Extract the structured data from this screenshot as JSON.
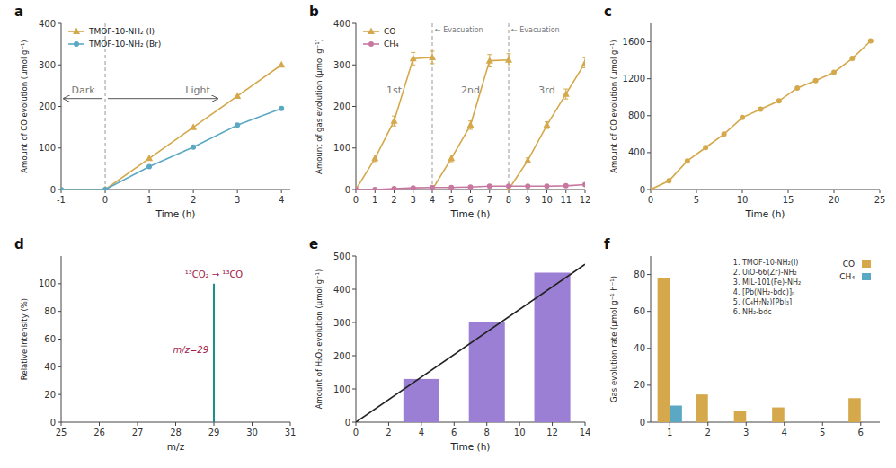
{
  "chart_data": [
    {
      "type": "line",
      "title": "a",
      "x_label": "Time (h)",
      "y_label": "Amount of CO evolution (μmol g⁻¹)",
      "xlim": [
        -1,
        4.2
      ],
      "xticks": [
        -1,
        0,
        1,
        2,
        3,
        4
      ],
      "ylim": [
        0,
        400
      ],
      "yticks": [
        0,
        100,
        200,
        300,
        400
      ],
      "legend": "upper left",
      "vlines": [
        0
      ],
      "annotations": [
        "Dark",
        "Light"
      ],
      "series": [
        {
          "name": "TMOF-10-NH₂ (I)",
          "color": "#D4A84B",
          "marker": "triangle",
          "x": [
            -1,
            0,
            1,
            2,
            3,
            4
          ],
          "values": [
            0,
            0,
            75,
            150,
            225,
            300
          ]
        },
        {
          "name": "TMOF-10-NH₂ (Br)",
          "color": "#5BA8C4",
          "marker": "circle",
          "x": [
            -1,
            0,
            1,
            2,
            3,
            4
          ],
          "values": [
            0,
            0,
            55,
            102,
            155,
            195
          ]
        }
      ]
    },
    {
      "type": "line",
      "title": "b",
      "x_label": "Time (h)",
      "y_label": "Amount of gas evolution (μmol g⁻¹)",
      "xlim": [
        0,
        12
      ],
      "xticks": [
        0,
        1,
        2,
        3,
        4,
        5,
        6,
        7,
        8,
        9,
        10,
        11,
        12
      ],
      "ylim": [
        0,
        400
      ],
      "yticks": [
        0,
        100,
        200,
        300,
        400
      ],
      "legend": "upper left",
      "vlines": [
        {
          "value": 4,
          "label": "← Evacuation"
        },
        {
          "value": 8,
          "label": "← Evacuation"
        }
      ],
      "annotations": [
        "1st",
        "2nd",
        "3rd"
      ],
      "series": [
        {
          "name": "CO",
          "color": "#D4A84B",
          "marker": "triangle",
          "x": [
            0,
            1,
            2,
            3,
            4,
            null,
            4,
            5,
            6,
            7,
            8,
            null,
            8,
            9,
            10,
            11,
            12
          ],
          "values": [
            0,
            75,
            165,
            315,
            318,
            null,
            0,
            75,
            155,
            310,
            312,
            null,
            0,
            70,
            155,
            230,
            305
          ],
          "errors": [
            0,
            8,
            12,
            15,
            15,
            null,
            0,
            8,
            10,
            15,
            15,
            null,
            0,
            6,
            8,
            12,
            12
          ]
        },
        {
          "name": "CH₄",
          "color": "#C878A0",
          "marker": "circle",
          "x": [
            0,
            1,
            2,
            3,
            4,
            5,
            6,
            7,
            8,
            9,
            10,
            11,
            12
          ],
          "values": [
            0,
            0,
            2,
            4,
            5,
            5,
            6,
            8,
            8,
            8,
            8,
            9,
            12
          ],
          "errors": [
            0,
            0,
            1,
            1,
            1,
            1,
            1,
            1,
            1,
            1,
            1,
            1,
            1
          ]
        }
      ]
    },
    {
      "type": "line",
      "title": "c",
      "x_label": "Time (h)",
      "y_label": "Amount of CO evolution (μmol g⁻¹)",
      "xlim": [
        0,
        25
      ],
      "xticks": [
        0,
        5,
        10,
        15,
        20,
        25
      ],
      "ylim": [
        0,
        1800
      ],
      "yticks": [
        0,
        400,
        800,
        1200,
        1600
      ],
      "series": [
        {
          "color": "#D4A84B",
          "marker": "circle",
          "x": [
            0,
            2,
            4,
            6,
            8,
            10,
            12,
            14,
            16,
            18,
            20,
            22,
            24
          ],
          "values": [
            0,
            95,
            310,
            455,
            600,
            780,
            870,
            960,
            1100,
            1180,
            1270,
            1420,
            1610
          ]
        }
      ]
    },
    {
      "type": "stem",
      "title": "d",
      "x_label": "m/z",
      "y_label": "Relative intensity (%)",
      "xlim": [
        25,
        31
      ],
      "xticks": [
        25,
        26,
        27,
        28,
        29,
        30,
        31
      ],
      "ylim": [
        0,
        120
      ],
      "yticks": [
        0,
        20,
        40,
        60,
        80,
        100
      ],
      "annotations": [
        "¹³CO₂ → ¹³CO",
        "m/z=29"
      ],
      "series": [
        {
          "color": "#1A9090",
          "x": [
            29
          ],
          "values": [
            100
          ]
        }
      ]
    },
    {
      "type": "bar",
      "title": "e",
      "x_label": "Time (h)",
      "y_label": "Amount of H₂O₂ evolution (μmol g⁻¹)",
      "xlim": [
        0,
        14
      ],
      "xticks": [
        0,
        2,
        4,
        6,
        8,
        10,
        12,
        14
      ],
      "ylim": [
        0,
        500
      ],
      "yticks": [
        0,
        100,
        200,
        300,
        400,
        500
      ],
      "series": [
        {
          "type": "bar",
          "color": "#9B7FD4",
          "x": [
            4,
            8,
            12
          ],
          "values": [
            130,
            300,
            450
          ]
        },
        {
          "type": "line",
          "color": "#222222",
          "x": [
            0,
            14
          ],
          "values": [
            0,
            475
          ]
        }
      ]
    },
    {
      "type": "bar",
      "title": "f",
      "y_label": "Gas evolution rate (μmol g⁻¹ h⁻¹)",
      "categories": [
        "1",
        "2",
        "3",
        "4",
        "5",
        "6"
      ],
      "ylim": [
        0,
        90
      ],
      "yticks": [
        0,
        20,
        40,
        60,
        80
      ],
      "legend": "upper right",
      "annotations": [
        "1.  TMOF-10-NH₂(I)",
        "2.  UiO-66(Zr)-NH₂",
        "3.  MIL-101(Fe)-NH₂",
        "4.  [Pb(NH₂-bdc)]ₙ",
        "5.  (C₄H₇N₂)[PbI₃]",
        "6.  NH₂-bdc"
      ],
      "series": [
        {
          "name": "CO",
          "color": "#D4A84B",
          "values": [
            78,
            15,
            6,
            8,
            0,
            13
          ]
        },
        {
          "name": "CH₄",
          "color": "#5BA8C4",
          "values": [
            9,
            0,
            0,
            0,
            0,
            0
          ]
        }
      ]
    }
  ]
}
